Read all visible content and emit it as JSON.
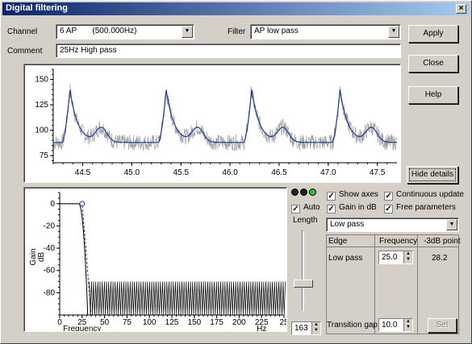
{
  "window": {
    "title": "Digital filtering",
    "close_glyph": "×"
  },
  "channel": {
    "label": "Channel",
    "value": "6 AP       (500.000Hz)"
  },
  "filter": {
    "label": "Filter",
    "value": "AP low pass"
  },
  "comment": {
    "label": "Comment",
    "value": "25Hz High pass"
  },
  "buttons": {
    "apply": "Apply",
    "close": "Close",
    "help": "Help",
    "hide_details": "Hide details",
    "set": "Set"
  },
  "signal_chart": {
    "y_ticks": [
      "150",
      "125",
      "100",
      "75"
    ],
    "x_ticks": [
      "44.5",
      "45.0",
      "45.5",
      "46.0",
      "46.5",
      "47.0",
      "47.5"
    ],
    "xlim": [
      44.2,
      47.7
    ],
    "ylim": [
      68,
      160
    ],
    "raw_color": "#a0a0a0",
    "filtered_color": "#1a3a9a"
  },
  "response_chart": {
    "y_ticks": [
      "0",
      "-20",
      "-40",
      "-60",
      "-80"
    ],
    "x_ticks": [
      "0",
      "25",
      "50",
      "75",
      "100",
      "125",
      "150",
      "175",
      "200",
      "225",
      "25"
    ],
    "ylabel": "Gain\ndB",
    "xlabel": "Frequency",
    "x_unit": "Hz",
    "xlim": [
      0,
      250
    ],
    "ylim": [
      -100,
      10
    ],
    "cutoff": 25,
    "transition_gap": 10,
    "stopband_db": -70
  },
  "lights": [
    "#202020",
    "#202020",
    "#30c030"
  ],
  "auto": {
    "label": "Auto",
    "checked": true
  },
  "length": {
    "label": "Length",
    "value": "163",
    "slider_fraction": 0.75
  },
  "options": {
    "show_axes": {
      "label": "Show axes",
      "checked": true
    },
    "continuous_update": {
      "label": "Continuous update",
      "checked": true
    },
    "gain_db": {
      "label": "Gain in dB",
      "checked": true
    },
    "free_params": {
      "label": "Free parameters",
      "checked": true
    }
  },
  "filter_type": "Low pass",
  "param_table": {
    "headers": [
      "Edge",
      "Frequency",
      "-3dB point"
    ],
    "row_label": "Low pass",
    "frequency": "25.0",
    "point_3db": "28.2"
  },
  "transition": {
    "label": "Transition gap",
    "value": "10.0"
  }
}
